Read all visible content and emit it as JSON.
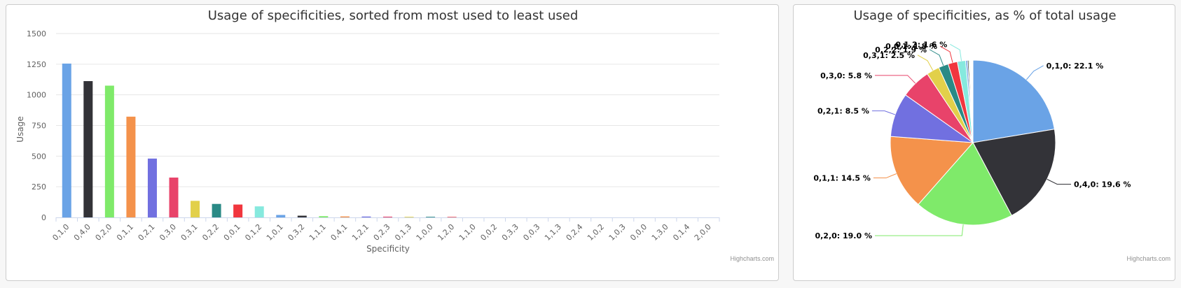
{
  "colors": [
    "#6aa3e6",
    "#333338",
    "#7fea6a",
    "#f4924b",
    "#7170e0",
    "#e8436a",
    "#e2d04a",
    "#2a8a86",
    "#f1363e",
    "#86e9de"
  ],
  "bar_chart": {
    "title": "Usage of specificities, sorted from most used to least used",
    "xlabel": "Specificity",
    "ylabel": "Usage",
    "credits": "Highcharts.com"
  },
  "pie_chart": {
    "title": "Usage of specificities, as % of total usage",
    "credits": "Highcharts.com"
  },
  "chart_data": [
    {
      "type": "bar",
      "title": "Usage of specificities, sorted from most used to least used",
      "xlabel": "Specificity",
      "ylabel": "Usage",
      "ylim": [
        0,
        1500
      ],
      "yticks": [
        "0",
        "250",
        "500",
        "750",
        "1000",
        "1250",
        "1500"
      ],
      "grid": true,
      "legend": "none",
      "categories": [
        "0,1,0",
        "0,4,0",
        "0,2,0",
        "0,1,1",
        "0,2,1",
        "0,3,0",
        "0,3,1",
        "0,2,2",
        "0,0,1",
        "0,1,2",
        "1,0,1",
        "0,3,2",
        "1,1,1",
        "0,4,1",
        "1,2,1",
        "0,2,3",
        "0,1,3",
        "1,0,0",
        "1,2,0",
        "1,1,0",
        "0,0,2",
        "0,3,3",
        "0,0,3",
        "1,1,3",
        "0,2,4",
        "1,0,2",
        "1,0,3",
        "0,0,0",
        "1,3,0",
        "0,1,4",
        "2,0,0"
      ],
      "values": [
        1255,
        1112,
        1075,
        822,
        480,
        325,
        135,
        110,
        105,
        90,
        20,
        14,
        10,
        8,
        7,
        6,
        5,
        5,
        4,
        0,
        0,
        0,
        0,
        0,
        0,
        0,
        0,
        0,
        0,
        0,
        0
      ]
    },
    {
      "type": "pie",
      "title": "Usage of specificities, as % of total usage",
      "slices": [
        {
          "name": "0,1,0",
          "value": 22.1,
          "label": "0,1,0: 22.1 %"
        },
        {
          "name": "0,4,0",
          "value": 19.6,
          "label": "0,4,0: 19.6 %"
        },
        {
          "name": "0,2,0",
          "value": 19.0,
          "label": "0,2,0: 19.0 %"
        },
        {
          "name": "0,1,1",
          "value": 14.5,
          "label": "0,1,1: 14.5 %"
        },
        {
          "name": "0,2,1",
          "value": 8.5,
          "label": "0,2,1: 8.5 %"
        },
        {
          "name": "0,3,0",
          "value": 5.8,
          "label": "0,3,0: 5.8 %"
        },
        {
          "name": "0,3,1",
          "value": 2.5,
          "label": "0,3,1: 2.5 %"
        },
        {
          "name": "0,2,2",
          "value": 1.9,
          "label": "0,2,2: 1.9 %"
        },
        {
          "name": "0,0,1",
          "value": 1.8,
          "label": "0,0,1: 1.8 %"
        },
        {
          "name": "0,1,2",
          "value": 1.6,
          "label": "0,1,2: 1.6 %"
        },
        {
          "name": "1,0,1",
          "value": 0.35,
          "label": ""
        },
        {
          "name": "0,3,2",
          "value": 0.25,
          "label": ""
        },
        {
          "name": "1,1,1",
          "value": 0.18,
          "label": ""
        },
        {
          "name": "0,4,1",
          "value": 0.14,
          "label": ""
        },
        {
          "name": "1,2,1",
          "value": 0.12,
          "label": ""
        },
        {
          "name": "0,2,3",
          "value": 0.11,
          "label": ""
        },
        {
          "name": "0,1,3",
          "value": 0.09,
          "label": ""
        },
        {
          "name": "1,0,0",
          "value": 0.09,
          "label": ""
        },
        {
          "name": "1,2,0",
          "value": 0.07,
          "label": ""
        }
      ]
    }
  ]
}
